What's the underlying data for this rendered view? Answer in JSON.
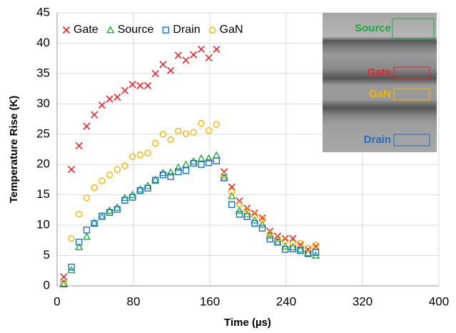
{
  "chart_data": {
    "type": "scatter",
    "x_label": "Time (µs)",
    "y_label": "Temperature Rise (K)",
    "xlim": [
      0,
      400
    ],
    "ylim": [
      0,
      45
    ],
    "xticks": [
      0,
      80,
      160,
      240,
      320,
      400
    ],
    "yticks": [
      0,
      5,
      10,
      15,
      20,
      25,
      30,
      35,
      40,
      45
    ],
    "grid": true,
    "legend": "top-left",
    "x": [
      7,
      15,
      23,
      31,
      39,
      47,
      55,
      63,
      71,
      79,
      87,
      95,
      103,
      111,
      119,
      127,
      135,
      143,
      151,
      159,
      167,
      175,
      183,
      191,
      199,
      207,
      215,
      223,
      231,
      239,
      247,
      255,
      263,
      271
    ],
    "series": [
      {
        "name": "Gate",
        "color": "#e8242a",
        "marker": "x",
        "values": [
          1.5,
          19.2,
          23.1,
          26.3,
          28.2,
          29.8,
          30.8,
          31.1,
          32.2,
          33.2,
          33.0,
          33.0,
          35.0,
          36.5,
          35.5,
          38.0,
          37.2,
          38.1,
          39.0,
          37.6,
          39.0,
          18.8,
          16.3,
          14.0,
          12.8,
          12.0,
          11.2,
          9.0,
          8.2,
          7.8,
          7.8,
          6.8,
          6.0,
          6.5
        ]
      },
      {
        "name": "Source",
        "color": "#1faa3c",
        "marker": "triangle",
        "values": [
          0.3,
          2.6,
          6.4,
          8.1,
          10.4,
          11.4,
          12.4,
          12.9,
          14.5,
          15.0,
          15.9,
          16.5,
          17.5,
          18.6,
          18.7,
          19.5,
          20.0,
          20.5,
          21.0,
          21.0,
          21.5,
          17.8,
          14.8,
          12.4,
          11.8,
          10.8,
          10.1,
          8.3,
          7.2,
          6.5,
          6.4,
          6.0,
          5.4,
          5.0
        ]
      },
      {
        "name": "Drain",
        "color": "#1f6fc4",
        "marker": "square",
        "values": [
          0.3,
          3.1,
          7.2,
          9.2,
          10.3,
          11.5,
          12.1,
          12.6,
          14.1,
          14.6,
          15.7,
          16.1,
          17.4,
          18.3,
          18.0,
          18.8,
          19.0,
          20.2,
          20.0,
          20.3,
          20.6,
          17.8,
          13.4,
          11.8,
          11.4,
          10.3,
          9.5,
          7.7,
          7.2,
          6.0,
          6.1,
          5.8,
          5.3,
          5.5
        ]
      },
      {
        "name": "GaN",
        "color": "#f5b400",
        "marker": "circle",
        "values": [
          0.5,
          7.8,
          11.8,
          14.5,
          16.2,
          17.3,
          18.3,
          19.2,
          19.8,
          21.3,
          21.6,
          21.9,
          23.5,
          25.0,
          24.1,
          25.5,
          25.1,
          25.3,
          26.8,
          25.6,
          26.6,
          18.2,
          15.5,
          13.5,
          12.4,
          11.6,
          11.0,
          8.5,
          7.8,
          7.4,
          7.0,
          7.0,
          6.2,
          6.7
        ]
      }
    ],
    "inset_labels": [
      "Source",
      "Gate",
      "GaN",
      "Drain"
    ]
  }
}
